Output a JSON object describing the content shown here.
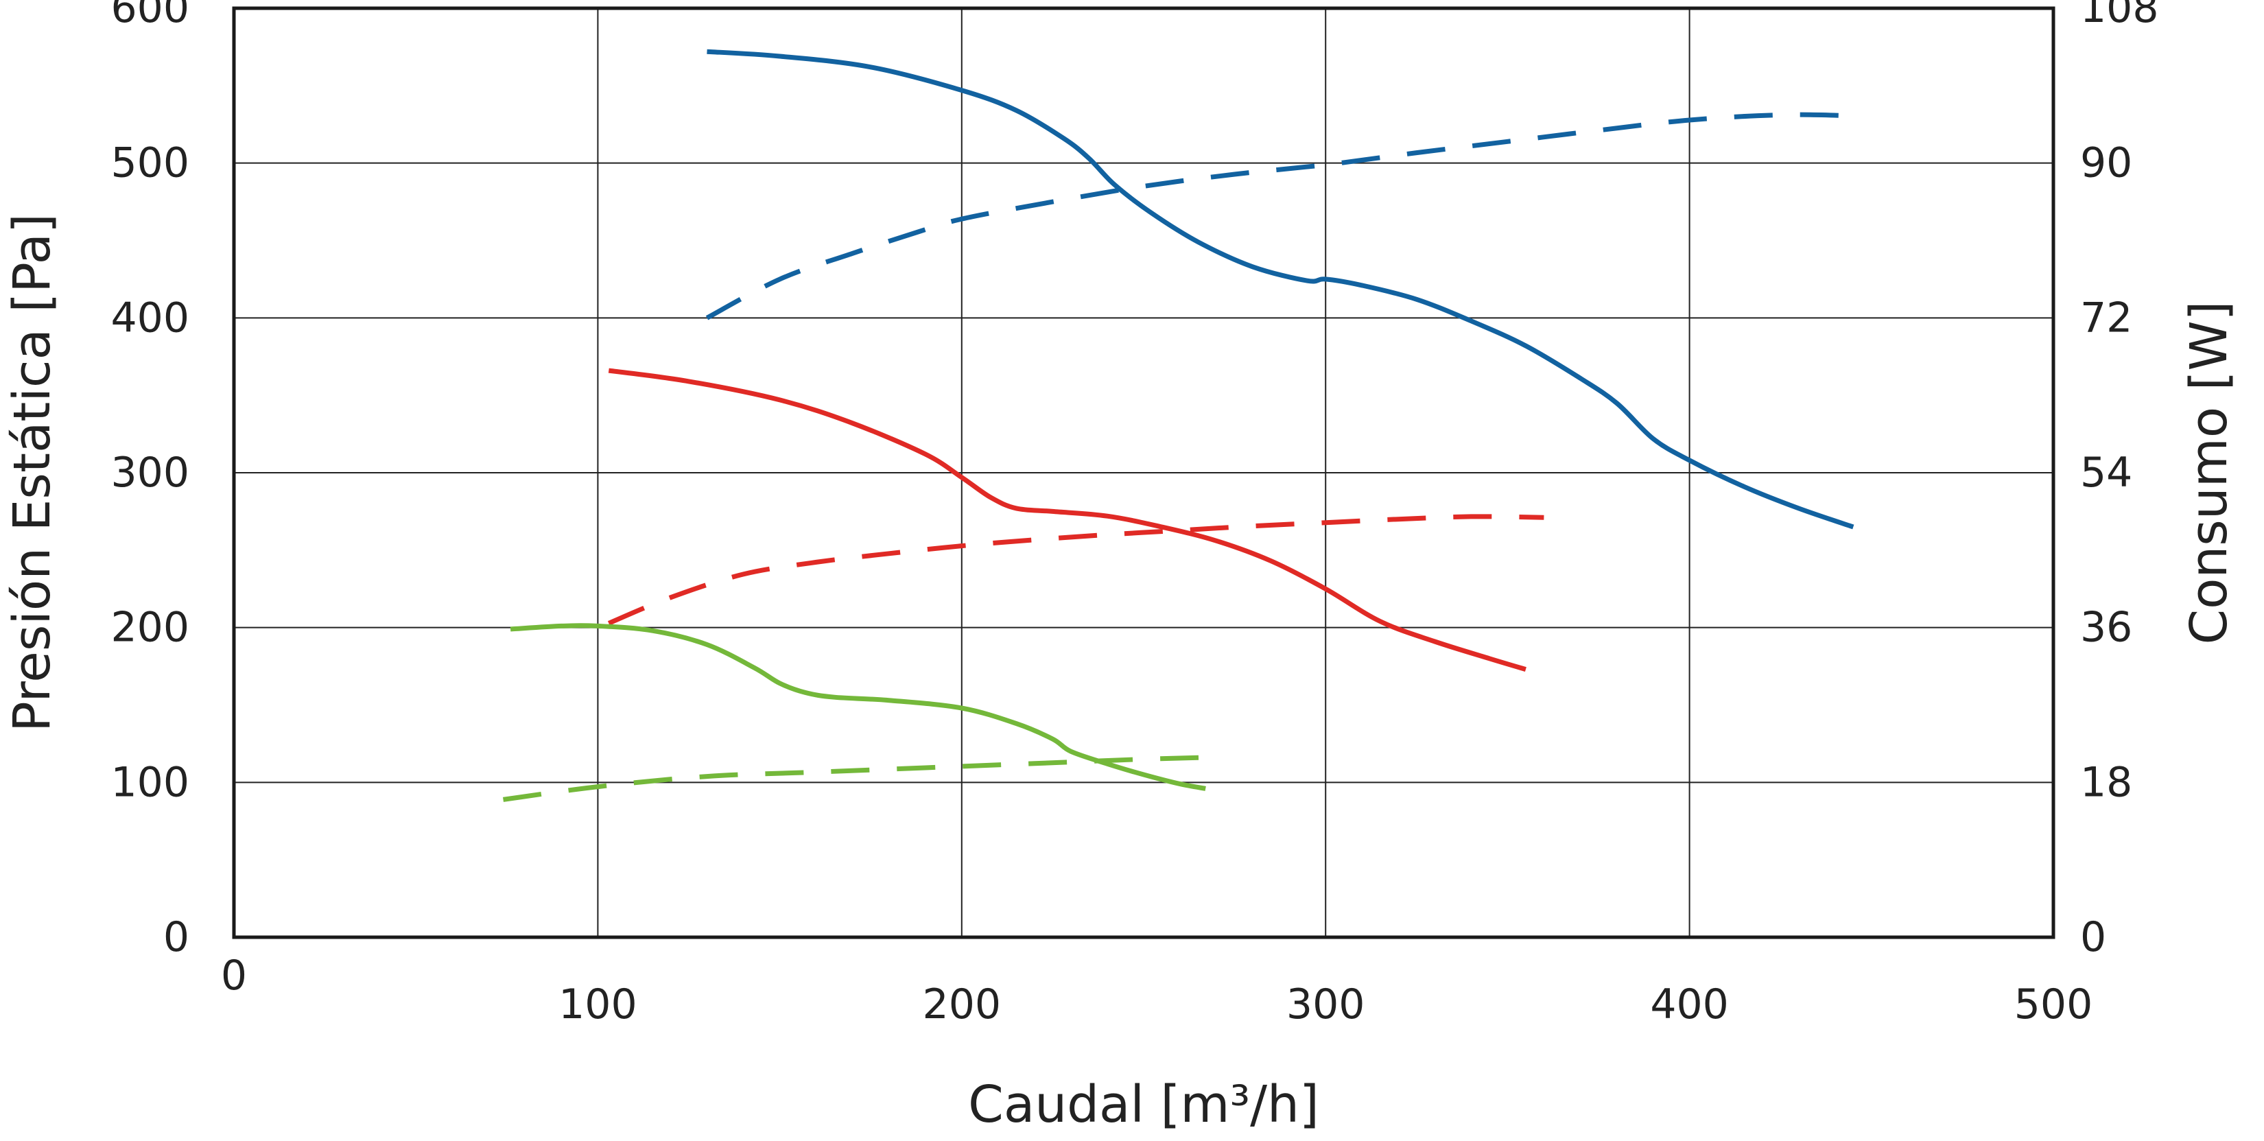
{
  "chart_data": {
    "type": "line",
    "xlabel": "Caudal [m³/h]",
    "ylabel": "Presión Estática [Pa]",
    "y2label": "Consumo [W]",
    "xlim": [
      0,
      500
    ],
    "ylim": [
      0,
      600
    ],
    "y2lim": [
      0,
      108
    ],
    "x_ticks": [
      0,
      100,
      200,
      300,
      400,
      500
    ],
    "y_ticks": [
      0,
      100,
      200,
      300,
      400,
      500,
      600
    ],
    "y2_ticks": [
      0,
      18,
      36,
      54,
      72,
      90,
      108
    ],
    "grid": true,
    "series": [
      {
        "color": "#1262a0",
        "style": "solid",
        "axis": "left",
        "points": [
          [
            130,
            572
          ],
          [
            150,
            569
          ],
          [
            175,
            562
          ],
          [
            200,
            547
          ],
          [
            215,
            534
          ],
          [
            228,
            516
          ],
          [
            235,
            503
          ],
          [
            242,
            486
          ],
          [
            252,
            468
          ],
          [
            265,
            449
          ],
          [
            280,
            433
          ],
          [
            295,
            424
          ],
          [
            300,
            425
          ],
          [
            310,
            421
          ],
          [
            325,
            412
          ],
          [
            340,
            398
          ],
          [
            355,
            382
          ],
          [
            370,
            361
          ],
          [
            380,
            345
          ],
          [
            390,
            322
          ],
          [
            400,
            308
          ],
          [
            415,
            291
          ],
          [
            430,
            277
          ],
          [
            445,
            265
          ]
        ]
      },
      {
        "color": "#1262a0",
        "style": "dashed",
        "axis": "right",
        "points": [
          [
            130,
            72
          ],
          [
            150,
            76.5
          ],
          [
            170,
            79.5
          ],
          [
            188,
            82
          ],
          [
            200,
            83.5
          ],
          [
            225,
            85.5
          ],
          [
            250,
            87.3
          ],
          [
            275,
            88.7
          ],
          [
            300,
            89.8
          ],
          [
            325,
            91.2
          ],
          [
            350,
            92.5
          ],
          [
            375,
            93.8
          ],
          [
            400,
            95
          ],
          [
            425,
            95.6
          ],
          [
            445,
            95.5
          ]
        ]
      },
      {
        "color": "#e02a25",
        "style": "solid",
        "axis": "left",
        "points": [
          [
            103,
            366
          ],
          [
            125,
            359
          ],
          [
            150,
            347
          ],
          [
            170,
            332
          ],
          [
            190,
            312
          ],
          [
            200,
            297
          ],
          [
            208,
            284
          ],
          [
            215,
            277
          ],
          [
            225,
            275
          ],
          [
            240,
            272
          ],
          [
            255,
            265
          ],
          [
            270,
            256
          ],
          [
            285,
            243
          ],
          [
            300,
            225
          ],
          [
            315,
            204
          ],
          [
            330,
            191
          ],
          [
            345,
            180
          ],
          [
            355,
            173
          ]
        ]
      },
      {
        "color": "#e02a25",
        "style": "dashed",
        "axis": "right",
        "points": [
          [
            103,
            36.5
          ],
          [
            120,
            39.5
          ],
          [
            140,
            42.2
          ],
          [
            160,
            43.6
          ],
          [
            180,
            44.6
          ],
          [
            200,
            45.5
          ],
          [
            220,
            46.2
          ],
          [
            240,
            46.8
          ],
          [
            260,
            47.3
          ],
          [
            280,
            47.8
          ],
          [
            300,
            48.2
          ],
          [
            320,
            48.6
          ],
          [
            340,
            48.9
          ],
          [
            360,
            48.8
          ]
        ]
      },
      {
        "color": "#74b83a",
        "style": "solid",
        "axis": "left",
        "points": [
          [
            76,
            199
          ],
          [
            90,
            201
          ],
          [
            100,
            201
          ],
          [
            115,
            198
          ],
          [
            130,
            189
          ],
          [
            143,
            174
          ],
          [
            150,
            164
          ],
          [
            157,
            158
          ],
          [
            165,
            155
          ],
          [
            180,
            153
          ],
          [
            200,
            148
          ],
          [
            215,
            138
          ],
          [
            225,
            128
          ],
          [
            230,
            120
          ],
          [
            240,
            112
          ],
          [
            250,
            105
          ],
          [
            260,
            99
          ],
          [
            267,
            96
          ]
        ]
      },
      {
        "color": "#74b83a",
        "style": "dashed",
        "axis": "right",
        "points": [
          [
            74,
            16
          ],
          [
            100,
            17.5
          ],
          [
            130,
            18.7
          ],
          [
            160,
            19.2
          ],
          [
            190,
            19.7
          ],
          [
            220,
            20.2
          ],
          [
            250,
            20.7
          ],
          [
            267,
            20.9
          ]
        ]
      }
    ]
  }
}
